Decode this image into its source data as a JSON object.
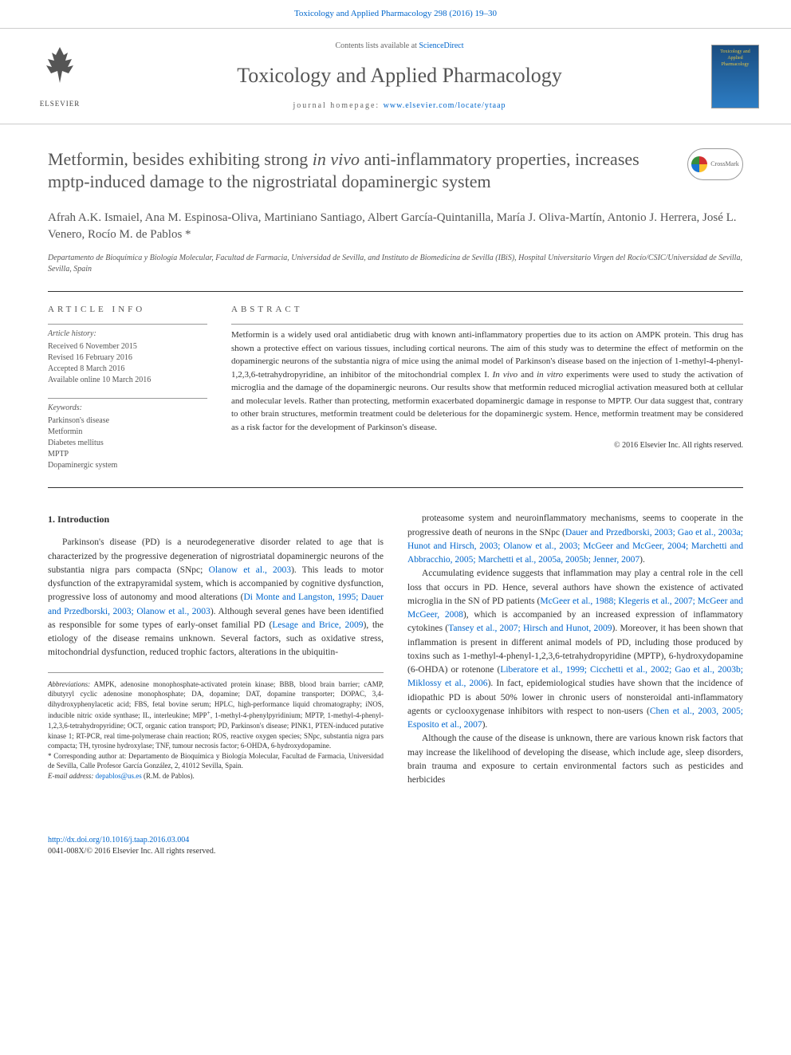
{
  "top_citation": "Toxicology and Applied Pharmacology 298 (2016) 19–30",
  "header": {
    "publisher": "ELSEVIER",
    "contents_prefix": "Contents lists available at ",
    "contents_link": "ScienceDirect",
    "journal_name": "Toxicology and Applied Pharmacology",
    "homepage_prefix": "journal homepage: ",
    "homepage_url": "www.elsevier.com/locate/ytaap",
    "cover_text": "Toxicology and Applied Pharmacology"
  },
  "article": {
    "title_html": "Metformin, besides exhibiting strong <em>in vivo</em> anti-inflammatory properties, increases mptp-induced damage to the nigrostriatal dopaminergic system",
    "crossmark": "CrossMark",
    "authors": "Afrah A.K. Ismaiel, Ana M. Espinosa-Oliva, Martiniano Santiago, Albert García-Quintanilla, María J. Oliva-Martín, Antonio J. Herrera, José L. Venero, Rocío M. de Pablos *",
    "affiliation": "Departamento de Bioquímica y Biología Molecular, Facultad de Farmacia, Universidad de Sevilla, and Instituto de Biomedicina de Sevilla (IBiS), Hospital Universitario Virgen del Rocío/CSIC/Universidad de Sevilla, Sevilla, Spain"
  },
  "info": {
    "section_label": "article info",
    "history_label": "Article history:",
    "received": "Received 6 November 2015",
    "revised": "Revised 16 February 2016",
    "accepted": "Accepted 8 March 2016",
    "online": "Available online 10 March 2016",
    "keywords_label": "Keywords:",
    "keywords": [
      "Parkinson's disease",
      "Metformin",
      "Diabetes mellitus",
      "MPTP",
      "Dopaminergic system"
    ]
  },
  "abstract": {
    "label": "abstract",
    "text_html": "Metformin is a widely used oral antidiabetic drug with known anti-inflammatory properties due to its action on AMPK protein. This drug has shown a protective effect on various tissues, including cortical neurons. The aim of this study was to determine the effect of metformin on the dopaminergic neurons of the substantia nigra of mice using the animal model of Parkinson's disease based on the injection of 1-methyl-4-phenyl-1,2,3,6-tetrahydropyridine, an inhibitor of the mitochondrial complex I. <em>In vivo</em> and <em>in vitro</em> experiments were used to study the activation of microglia and the damage of the dopaminergic neurons. Our results show that metformin reduced microglial activation measured both at cellular and molecular levels. Rather than protecting, metformin exacerbated dopaminergic damage in response to MPTP. Our data suggest that, contrary to other brain structures, metformin treatment could be deleterious for the dopaminergic system. Hence, metformin treatment may be considered as a risk factor for the development of Parkinson's disease.",
    "copyright": "© 2016 Elsevier Inc. All rights reserved."
  },
  "body": {
    "heading": "1. Introduction",
    "left_col_html": "Parkinson's disease (PD) is a neurodegenerative disorder related to age that is characterized by the progressive degeneration of nigrostriatal dopaminergic neurons of the substantia nigra pars compacta (SNpc; <a href='#'>Olanow et al., 2003</a>). This leads to motor dysfunction of the extrapyramidal system, which is accompanied by cognitive dysfunction, progressive loss of autonomy and mood alterations (<a href='#'>Di Monte and Langston, 1995; Dauer and Przedborski, 2003; Olanow et al., 2003</a>). Although several genes have been identified as responsible for some types of early-onset familial PD (<a href='#'>Lesage and Brice, 2009</a>), the etiology of the disease remains unknown. Several factors, such as oxidative stress, mitochondrial dysfunction, reduced trophic factors, alterations in the ubiquitin-",
    "right_p1_html": "proteasome system and neuroinflammatory mechanisms, seems to cooperate in the progressive death of neurons in the SNpc (<a href='#'>Dauer and Przedborski, 2003; Gao et al., 2003a; Hunot and Hirsch, 2003; Olanow et al., 2003; McGeer and McGeer, 2004; Marchetti and Abbracchio, 2005; Marchetti et al., 2005a, 2005b; Jenner, 2007</a>).",
    "right_p2_html": "Accumulating evidence suggests that inflammation may play a central role in the cell loss that occurs in PD. Hence, several authors have shown the existence of activated microglia in the SN of PD patients (<a href='#'>McGeer et al., 1988; Klegeris et al., 2007; McGeer and McGeer, 2008</a>), which is accompanied by an increased expression of inflammatory cytokines (<a href='#'>Tansey et al., 2007; Hirsch and Hunot, 2009</a>). Moreover, it has been shown that inflammation is present in different animal models of PD, including those produced by toxins such as 1-methyl-4-phenyl-1,2,3,6-tetrahydropyridine (MPTP), 6-hydroxydopamine (6-OHDA) or rotenone (<a href='#'>Liberatore et al., 1999; Cicchetti et al., 2002; Gao et al., 2003b; Miklossy et al., 2006</a>). In fact, epidemiological studies have shown that the incidence of idiopathic PD is about 50% lower in chronic users of nonsteroidal anti-inflammatory agents or cyclooxygenase inhibitors with respect to non-users (<a href='#'>Chen et al., 2003, 2005; Esposito et al., 2007</a>).",
    "right_p3_html": "Although the cause of the disease is unknown, there are various known risk factors that may increase the likelihood of developing the disease, which include age, sleep disorders, brain trauma and exposure to certain environmental factors such as pesticides and herbicides"
  },
  "footnotes": {
    "abbreviations_html": "<em>Abbreviations:</em> AMPK, adenosine monophosphate-activated protein kinase; BBB, blood brain barrier; cAMP, dibutyryl cyclic adenosine monophosphate; DA, dopamine; DAT, dopamine transporter; DOPAC, 3,4-dihydroxyphenylacetic acid; FBS, fetal bovine serum; HPLC, high-performance liquid chromatography; iNOS, inducible nitric oxide synthase; IL, interleukine; MPP<sup>+</sup>, 1-methyl-4-phenylpyridinium; MPTP, 1-methyl-4-phenyl-1,2,3,6-tetrahydropyridine; OCT, organic cation transport; PD, Parkinson's disease; PINK1, PTEN-induced putative kinase 1; RT-PCR, real time-polymerase chain reaction; ROS, reactive oxygen species; SNpc, substantia nigra pars compacta; TH, tyrosine hydroxylase; TNF, tumour necrosis factor; 6-OHDA, 6-hydroxydopamine.",
    "corresponding": "* Corresponding author at: Departamento de Bioquímica y Biología Molecular, Facultad de Farmacia, Universidad de Sevilla, Calle Profesor García González, 2, 41012 Sevilla, Spain.",
    "email_label": "E-mail address: ",
    "email": "depablos@us.es",
    "email_name": " (R.M. de Pablos)."
  },
  "footer": {
    "doi": "http://dx.doi.org/10.1016/j.taap.2016.03.004",
    "issn_copyright": "0041-008X/© 2016 Elsevier Inc. All rights reserved."
  }
}
